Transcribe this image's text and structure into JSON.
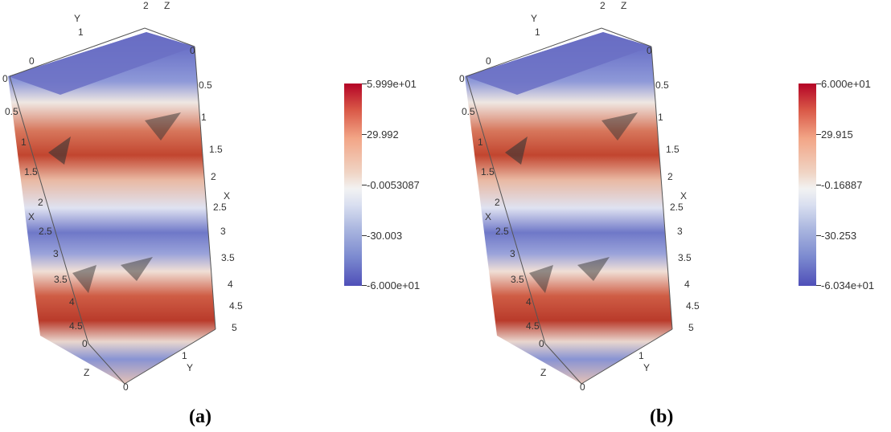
{
  "panels": [
    {
      "caption": "(a)",
      "colorbar": {
        "max": "5.999e+01",
        "mid_high": "29.992",
        "mid": "-0.0053087",
        "mid_low": "-30.003",
        "min": "-6.000e+01"
      }
    },
    {
      "caption": "(b)",
      "colorbar": {
        "max": "6.000e+01",
        "mid_high": "29.915",
        "mid": "-0.16887",
        "mid_low": "-30.253",
        "min": "-6.034e+01"
      }
    }
  ],
  "axes": {
    "x_label": "X",
    "y_label": "Y",
    "z_label": "Z",
    "x_ticks": [
      "0",
      "0.5",
      "1",
      "1.5",
      "2",
      "2.5",
      "3",
      "3.5",
      "4",
      "4.5",
      "5"
    ],
    "y_ticks": [
      "0",
      "1",
      "2"
    ],
    "z_ticks": [
      "0"
    ]
  },
  "colors": {
    "positive": "#b40426",
    "neutral": "#f2f2f2",
    "negative": "#4f4fb8"
  }
}
